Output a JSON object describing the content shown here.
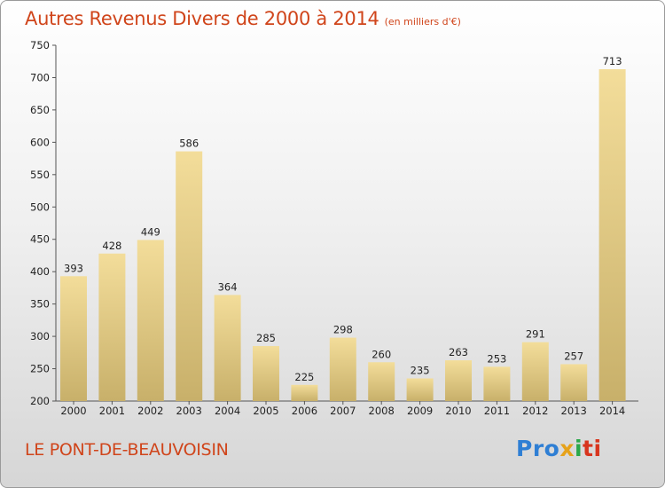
{
  "chart_data": {
    "type": "bar",
    "title": "Autres Revenus Divers de 2000 à 2014",
    "subtitle": "(en milliers d'€)",
    "categories": [
      "2000",
      "2001",
      "2002",
      "2003",
      "2004",
      "2005",
      "2006",
      "2007",
      "2008",
      "2009",
      "2010",
      "2011",
      "2012",
      "2013",
      "2014"
    ],
    "values": [
      393,
      428,
      449,
      586,
      364,
      285,
      225,
      298,
      260,
      235,
      263,
      253,
      291,
      257,
      713
    ],
    "ylim": [
      200,
      750
    ],
    "yticks": [
      200,
      250,
      300,
      350,
      400,
      450,
      500,
      550,
      600,
      650,
      700,
      750
    ],
    "grid": false,
    "colors": {
      "bar_top": "#f3dd9a",
      "bar_bottom": "#c8b06a",
      "axis": "#555555",
      "title": "#d0451b"
    }
  },
  "location": "LE PONT-DE-BEAUVOISIN",
  "logo": {
    "text": "Proxiti",
    "icon": "proxiti-logo"
  }
}
